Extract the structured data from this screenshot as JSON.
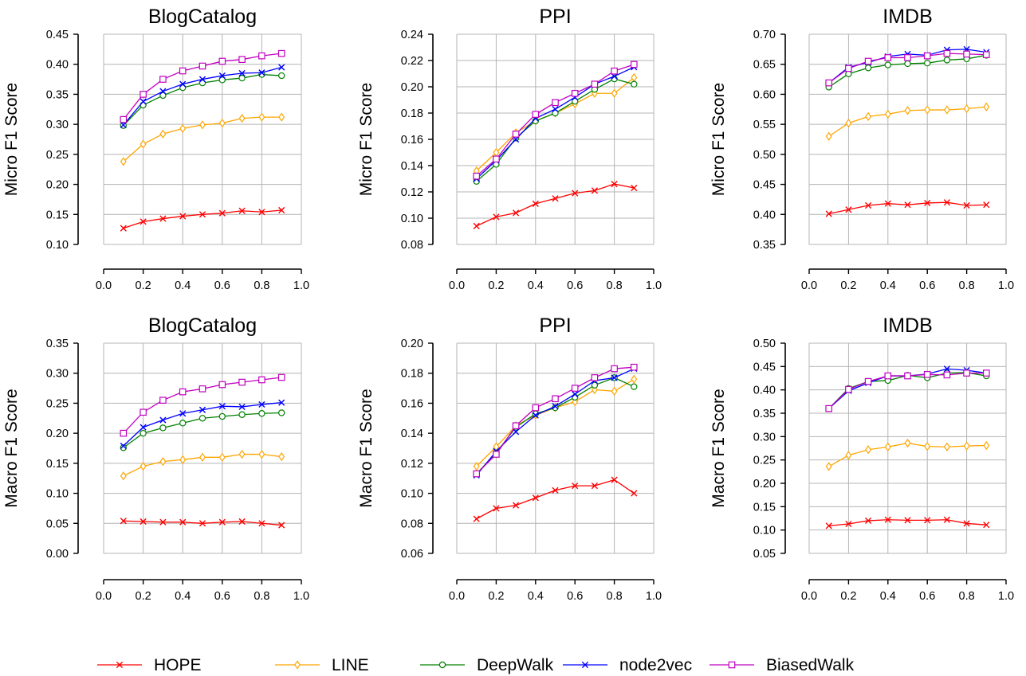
{
  "chart_data": [
    {
      "type": "line",
      "title": "BlogCatalog",
      "ylabel": "Micro F1 Score",
      "xlim": [
        0.0,
        1.0
      ],
      "ylim": [
        0.1,
        0.45
      ],
      "xticks": [
        "0.0",
        "0.2",
        "0.4",
        "0.6",
        "0.8",
        "1.0"
      ],
      "yticks": [
        "0.10",
        "0.15",
        "0.20",
        "0.25",
        "0.30",
        "0.35",
        "0.40",
        "0.45"
      ],
      "grid": true,
      "x": [
        0.1,
        0.2,
        0.3,
        0.4,
        0.5,
        0.6,
        0.7,
        0.8,
        0.9
      ],
      "series": [
        {
          "name": "HOPE",
          "values": [
            0.127,
            0.138,
            0.143,
            0.147,
            0.15,
            0.152,
            0.156,
            0.154,
            0.157
          ]
        },
        {
          "name": "LINE",
          "values": [
            0.238,
            0.267,
            0.284,
            0.293,
            0.299,
            0.302,
            0.31,
            0.312,
            0.312
          ]
        },
        {
          "name": "DeepWalk",
          "values": [
            0.298,
            0.332,
            0.348,
            0.361,
            0.369,
            0.374,
            0.377,
            0.383,
            0.381
          ]
        },
        {
          "name": "node2vec",
          "values": [
            0.299,
            0.338,
            0.355,
            0.367,
            0.375,
            0.381,
            0.385,
            0.386,
            0.395
          ]
        },
        {
          "name": "BiasedWalk",
          "values": [
            0.308,
            0.35,
            0.375,
            0.389,
            0.397,
            0.405,
            0.408,
            0.414,
            0.418
          ]
        }
      ]
    },
    {
      "type": "line",
      "title": "PPI",
      "ylabel": "Micro F1 Score",
      "xlim": [
        0.0,
        1.0
      ],
      "ylim": [
        0.08,
        0.24
      ],
      "xticks": [
        "0.0",
        "0.2",
        "0.4",
        "0.6",
        "0.8",
        "1.0"
      ],
      "yticks": [
        "0.08",
        "0.10",
        "0.12",
        "0.14",
        "0.16",
        "0.18",
        "0.20",
        "0.22",
        "0.24"
      ],
      "grid": true,
      "x": [
        0.1,
        0.2,
        0.3,
        0.4,
        0.5,
        0.6,
        0.7,
        0.8,
        0.9
      ],
      "series": [
        {
          "name": "HOPE",
          "values": [
            0.094,
            0.101,
            0.104,
            0.111,
            0.115,
            0.119,
            0.121,
            0.126,
            0.123
          ]
        },
        {
          "name": "LINE",
          "values": [
            0.136,
            0.15,
            0.165,
            0.174,
            0.18,
            0.187,
            0.195,
            0.195,
            0.207
          ]
        },
        {
          "name": "DeepWalk",
          "values": [
            0.128,
            0.141,
            0.161,
            0.174,
            0.18,
            0.189,
            0.198,
            0.206,
            0.202
          ]
        },
        {
          "name": "node2vec",
          "values": [
            0.13,
            0.144,
            0.16,
            0.176,
            0.183,
            0.192,
            0.202,
            0.208,
            0.215
          ]
        },
        {
          "name": "BiasedWalk",
          "values": [
            0.132,
            0.145,
            0.164,
            0.179,
            0.188,
            0.195,
            0.202,
            0.212,
            0.217
          ]
        }
      ]
    },
    {
      "type": "line",
      "title": "IMDB",
      "ylabel": "Micro F1 Score",
      "xlim": [
        0.0,
        1.0
      ],
      "ylim": [
        0.35,
        0.7
      ],
      "xticks": [
        "0.0",
        "0.2",
        "0.4",
        "0.6",
        "0.8",
        "1.0"
      ],
      "yticks": [
        "0.35",
        "0.40",
        "0.45",
        "0.50",
        "0.55",
        "0.60",
        "0.65",
        "0.70"
      ],
      "grid": true,
      "x": [
        0.1,
        0.2,
        0.3,
        0.4,
        0.5,
        0.6,
        0.7,
        0.8,
        0.9
      ],
      "series": [
        {
          "name": "HOPE",
          "values": [
            0.401,
            0.408,
            0.415,
            0.418,
            0.416,
            0.419,
            0.42,
            0.415,
            0.416
          ]
        },
        {
          "name": "LINE",
          "values": [
            0.53,
            0.552,
            0.563,
            0.567,
            0.573,
            0.574,
            0.574,
            0.576,
            0.579
          ]
        },
        {
          "name": "DeepWalk",
          "values": [
            0.612,
            0.634,
            0.644,
            0.649,
            0.651,
            0.652,
            0.657,
            0.659,
            0.665
          ]
        },
        {
          "name": "node2vec",
          "values": [
            0.619,
            0.645,
            0.653,
            0.663,
            0.667,
            0.665,
            0.674,
            0.675,
            0.67
          ]
        },
        {
          "name": "BiasedWalk",
          "values": [
            0.619,
            0.643,
            0.655,
            0.661,
            0.661,
            0.664,
            0.668,
            0.667,
            0.666
          ]
        }
      ]
    },
    {
      "type": "line",
      "title": "BlogCatalog",
      "ylabel": "Macro F1 Score",
      "xlim": [
        0.0,
        1.0
      ],
      "ylim": [
        0.0,
        0.35
      ],
      "xticks": [
        "0.0",
        "0.2",
        "0.4",
        "0.6",
        "0.8",
        "1.0"
      ],
      "yticks": [
        "0.00",
        "0.05",
        "0.10",
        "0.15",
        "0.20",
        "0.25",
        "0.30",
        "0.35"
      ],
      "grid": true,
      "x": [
        0.1,
        0.2,
        0.3,
        0.4,
        0.5,
        0.6,
        0.7,
        0.8,
        0.9
      ],
      "series": [
        {
          "name": "HOPE",
          "values": [
            0.054,
            0.053,
            0.052,
            0.052,
            0.05,
            0.052,
            0.053,
            0.05,
            0.047
          ]
        },
        {
          "name": "LINE",
          "values": [
            0.129,
            0.145,
            0.153,
            0.156,
            0.16,
            0.16,
            0.165,
            0.165,
            0.161
          ]
        },
        {
          "name": "DeepWalk",
          "values": [
            0.176,
            0.2,
            0.209,
            0.217,
            0.225,
            0.228,
            0.231,
            0.233,
            0.234
          ]
        },
        {
          "name": "node2vec",
          "values": [
            0.179,
            0.21,
            0.222,
            0.233,
            0.239,
            0.245,
            0.244,
            0.248,
            0.251
          ]
        },
        {
          "name": "BiasedWalk",
          "values": [
            0.2,
            0.235,
            0.255,
            0.269,
            0.274,
            0.281,
            0.285,
            0.289,
            0.293
          ]
        }
      ]
    },
    {
      "type": "line",
      "title": "PPI",
      "ylabel": "Macro F1 Score",
      "xlim": [
        0.0,
        1.0
      ],
      "ylim": [
        0.06,
        0.2
      ],
      "xticks": [
        "0.0",
        "0.2",
        "0.4",
        "0.6",
        "0.8",
        "1.0"
      ],
      "yticks": [
        "0.06",
        "0.08",
        "0.10",
        "0.12",
        "0.14",
        "0.16",
        "0.18",
        "0.20"
      ],
      "grid": true,
      "x": [
        0.1,
        0.2,
        0.3,
        0.4,
        0.5,
        0.6,
        0.7,
        0.8,
        0.9
      ],
      "series": [
        {
          "name": "HOPE",
          "values": [
            0.083,
            0.09,
            0.092,
            0.097,
            0.102,
            0.105,
            0.105,
            0.109,
            0.1
          ]
        },
        {
          "name": "LINE",
          "values": [
            0.118,
            0.131,
            0.145,
            0.152,
            0.157,
            0.161,
            0.169,
            0.168,
            0.176
          ]
        },
        {
          "name": "DeepWalk",
          "values": [
            0.113,
            0.127,
            0.144,
            0.153,
            0.157,
            0.164,
            0.172,
            0.177,
            0.171
          ]
        },
        {
          "name": "node2vec",
          "values": [
            0.112,
            0.128,
            0.141,
            0.152,
            0.158,
            0.166,
            0.175,
            0.177,
            0.183
          ]
        },
        {
          "name": "BiasedWalk",
          "values": [
            0.113,
            0.126,
            0.145,
            0.157,
            0.163,
            0.17,
            0.177,
            0.183,
            0.184
          ]
        }
      ]
    },
    {
      "type": "line",
      "title": "IMDB",
      "ylabel": "Macro F1 Score",
      "xlim": [
        0.0,
        1.0
      ],
      "ylim": [
        0.05,
        0.5
      ],
      "xticks": [
        "0.0",
        "0.2",
        "0.4",
        "0.6",
        "0.8",
        "1.0"
      ],
      "yticks": [
        "0.05",
        "0.10",
        "0.15",
        "0.20",
        "0.25",
        "0.30",
        "0.35",
        "0.40",
        "0.45",
        "0.50"
      ],
      "grid": true,
      "x": [
        0.1,
        0.2,
        0.3,
        0.4,
        0.5,
        0.6,
        0.7,
        0.8,
        0.9
      ],
      "series": [
        {
          "name": "HOPE",
          "values": [
            0.109,
            0.113,
            0.12,
            0.122,
            0.121,
            0.121,
            0.122,
            0.114,
            0.111
          ]
        },
        {
          "name": "LINE",
          "values": [
            0.236,
            0.26,
            0.272,
            0.278,
            0.286,
            0.279,
            0.278,
            0.28,
            0.281
          ]
        },
        {
          "name": "DeepWalk",
          "values": [
            0.36,
            0.403,
            0.418,
            0.42,
            0.431,
            0.426,
            0.436,
            0.437,
            0.43
          ]
        },
        {
          "name": "node2vec",
          "values": [
            0.36,
            0.398,
            0.415,
            0.43,
            0.43,
            0.434,
            0.445,
            0.442,
            0.436
          ]
        },
        {
          "name": "BiasedWalk",
          "values": [
            0.36,
            0.401,
            0.418,
            0.43,
            0.43,
            0.433,
            0.432,
            0.436,
            0.436
          ]
        }
      ]
    }
  ],
  "legend": {
    "placement": "bottom",
    "items": [
      {
        "name": "HOPE",
        "color": "#ff0000",
        "marker": "x"
      },
      {
        "name": "LINE",
        "color": "#ffa500",
        "marker": "diamond"
      },
      {
        "name": "DeepWalk",
        "color": "#008000",
        "marker": "circle"
      },
      {
        "name": "node2vec",
        "color": "#0000ff",
        "marker": "x"
      },
      {
        "name": "BiasedWalk",
        "color": "#c000c0",
        "marker": "square"
      }
    ]
  }
}
